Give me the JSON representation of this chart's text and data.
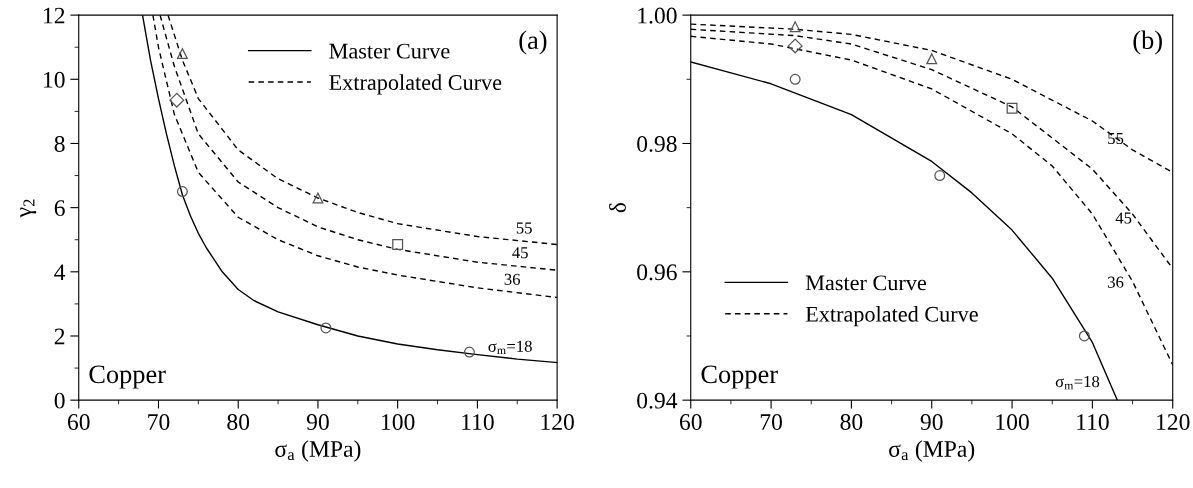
{
  "chart_data": [
    {
      "type": "line",
      "xlabel": "σ$_{a}$ (MPa)",
      "ylabel": "γ$_{2}$",
      "xlim": [
        60,
        120
      ],
      "ylim": [
        0,
        12
      ],
      "xticks": [
        60,
        70,
        80,
        90,
        100,
        110,
        120
      ],
      "yticks": [
        0,
        2,
        4,
        6,
        8,
        10,
        12
      ],
      "grid": false,
      "legend": "top",
      "series": [
        {
          "name": "Master Curve",
          "color": "#000000",
          "line_style": "solid",
          "marker": "none",
          "x": [
            68.0,
            69,
            70,
            71,
            72,
            73,
            74,
            75,
            76,
            78,
            80,
            82,
            85,
            90,
            95,
            100,
            105,
            110,
            115,
            120
          ],
          "values": [
            12,
            10.6,
            9.4,
            8.3,
            7.3,
            6.4,
            5.75,
            5.2,
            4.75,
            4.0,
            3.45,
            3.1,
            2.75,
            2.35,
            2.0,
            1.75,
            1.57,
            1.42,
            1.28,
            1.17
          ]
        },
        {
          "name": "Extrapolated Curve",
          "color": "#000000",
          "line_style": "dashed",
          "marker": "none",
          "x": [
            69.3,
            70,
            72,
            75,
            80,
            85,
            90,
            95,
            100,
            110,
            120
          ],
          "values": [
            12,
            11.0,
            8.9,
            7.1,
            5.7,
            5.0,
            4.5,
            4.15,
            3.9,
            3.5,
            3.2
          ]
        },
        {
          "color": "#000000",
          "line_style": "dashed",
          "marker": "none",
          "x": [
            70.2,
            72,
            75,
            80,
            85,
            90,
            95,
            100,
            110,
            120
          ],
          "values": [
            12,
            10.4,
            8.3,
            6.8,
            6.0,
            5.4,
            5.0,
            4.7,
            4.3,
            4.05
          ]
        },
        {
          "color": "#000000",
          "line_style": "dashed",
          "marker": "none",
          "x": [
            71.2,
            73,
            75,
            80,
            85,
            90,
            95,
            100,
            110,
            120
          ],
          "values": [
            12,
            10.6,
            9.4,
            7.8,
            6.9,
            6.3,
            5.85,
            5.5,
            5.1,
            4.85
          ]
        },
        {
          "type": "scatter",
          "color": "#555555",
          "marker": "circle",
          "x": [
            73,
            91,
            109
          ],
          "values": [
            6.5,
            2.25,
            1.5
          ]
        },
        {
          "type": "scatter",
          "color": "#555555",
          "marker": "diamond",
          "x": [
            72.3
          ],
          "values": [
            9.35
          ]
        },
        {
          "type": "scatter",
          "color": "#555555",
          "marker": "square",
          "x": [
            100
          ],
          "values": [
            4.85
          ]
        },
        {
          "type": "scatter",
          "color": "#555555",
          "marker": "triangle",
          "x": [
            73,
            90
          ],
          "values": [
            10.8,
            6.3
          ]
        }
      ],
      "annotations": [
        "Copper",
        "(a)",
        {
          "text": "55",
          "x": 119,
          "y": 4.87
        },
        {
          "text": "45",
          "x": 118.5,
          "y": 4.1
        },
        {
          "text": "36",
          "x": 117.5,
          "y": 3.27
        },
        {
          "text": "σ$_{m}$=18",
          "x": 119,
          "y": 1.18
        }
      ]
    },
    {
      "type": "line",
      "xlabel": "σ$_{a}$ (MPa)",
      "ylabel": "δ",
      "xlim": [
        60,
        120
      ],
      "ylim": [
        0.94,
        1.0
      ],
      "xticks": [
        60,
        70,
        80,
        90,
        100,
        110,
        120
      ],
      "yticks": [
        {
          "value": 0.94,
          "label": "0.94"
        },
        {
          "value": 0.96,
          "label": "0.96"
        },
        {
          "value": 0.98,
          "label": "0.98"
        },
        {
          "value": 1.0,
          "label": "1.00"
        }
      ],
      "grid": false,
      "legend": "bottom left",
      "series": [
        {
          "name": "Master Curve",
          "color": "#000000",
          "line_style": "solid",
          "marker": "none",
          "x": [
            60,
            70,
            80,
            90,
            95,
            100,
            105,
            110,
            113.1
          ],
          "values": [
            0.9927,
            0.9893,
            0.9845,
            0.9772,
            0.9723,
            0.9665,
            0.959,
            0.949,
            0.94
          ]
        },
        {
          "name": "Extrapolated Curve",
          "color": "#000000",
          "line_style": "dashed",
          "marker": "none",
          "x": [
            60,
            70,
            80,
            90,
            100,
            105,
            110,
            115,
            120
          ],
          "values": [
            0.9967,
            0.9955,
            0.993,
            0.9885,
            0.9815,
            0.9765,
            0.969,
            0.9585,
            0.9455
          ]
        },
        {
          "color": "#000000",
          "line_style": "dashed",
          "marker": "none",
          "x": [
            60,
            73,
            80,
            90,
            100,
            110,
            115,
            120
          ],
          "values": [
            0.9978,
            0.9968,
            0.9955,
            0.9915,
            0.9857,
            0.976,
            0.969,
            0.9605
          ]
        },
        {
          "color": "#000000",
          "line_style": "dashed",
          "marker": "none",
          "x": [
            60,
            73,
            80,
            90,
            100,
            110,
            115,
            120
          ],
          "values": [
            0.9986,
            0.9978,
            0.997,
            0.9945,
            0.99,
            0.9835,
            0.979,
            0.9755
          ]
        },
        {
          "type": "scatter",
          "color": "#555555",
          "marker": "circle",
          "x": [
            73,
            91,
            109
          ],
          "values": [
            0.99,
            0.975,
            0.95
          ]
        },
        {
          "type": "scatter",
          "color": "#555555",
          "marker": "diamond",
          "x": [
            73
          ],
          "values": [
            0.9952
          ]
        },
        {
          "type": "scatter",
          "color": "#555555",
          "marker": "square",
          "x": [
            100
          ],
          "values": [
            0.9855
          ]
        },
        {
          "type": "scatter",
          "color": "#555555",
          "marker": "triangle",
          "x": [
            73,
            90
          ],
          "values": [
            0.9982,
            0.9932
          ]
        }
      ],
      "annotations": [
        "Copper",
        "(b)",
        {
          "text": "55",
          "x": 116,
          "y": 0.9783
        },
        {
          "text": "45",
          "x": 117,
          "y": 0.9659
        },
        {
          "text": "36",
          "x": 116,
          "y": 0.9559
        },
        {
          "text": "σ$_{m}$=18",
          "x": 113,
          "y": 0.9404
        }
      ]
    }
  ]
}
